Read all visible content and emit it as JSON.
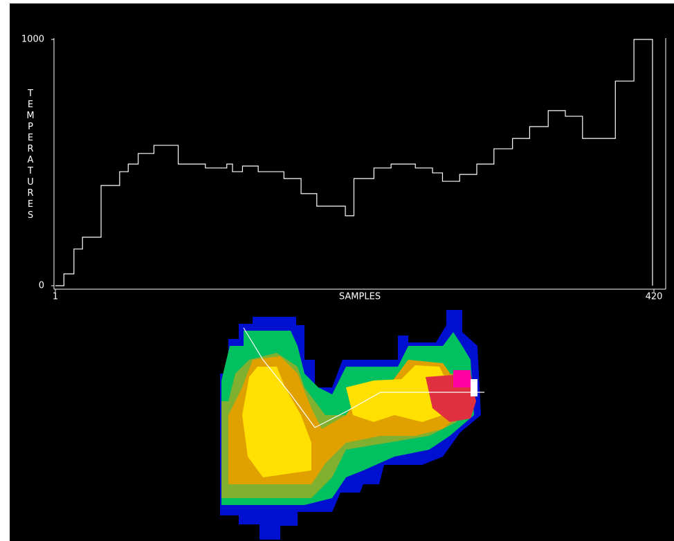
{
  "chart_data": {
    "type": "line",
    "step": true,
    "y_label": "TEMPERATURES",
    "x_label": "SAMPLES",
    "x": [
      1,
      7,
      14,
      20,
      33,
      46,
      52,
      59,
      70,
      87,
      106,
      121,
      125,
      132,
      143,
      161,
      173,
      184,
      204,
      210,
      224,
      236,
      253,
      265,
      272,
      284,
      296,
      308,
      321,
      333,
      346,
      358,
      370,
      393,
      406,
      419
    ],
    "series": [
      {
        "color": "#ffffff",
        "values": [
          0,
          48,
          149,
          197,
          407,
          463,
          494,
          537,
          570,
          494,
          478,
          494,
          463,
          486,
          463,
          435,
          374,
          323,
          284,
          435,
          478,
          494,
          478,
          458,
          424,
          452,
          494,
          556,
          598,
          646,
          711,
          688,
          598,
          831,
          1000,
          0
        ]
      }
    ],
    "xlim": [
      1,
      420
    ],
    "ylim": [
      0,
      1000
    ],
    "xticks": [
      1,
      420
    ],
    "yticks": [
      0,
      1000
    ]
  }
}
